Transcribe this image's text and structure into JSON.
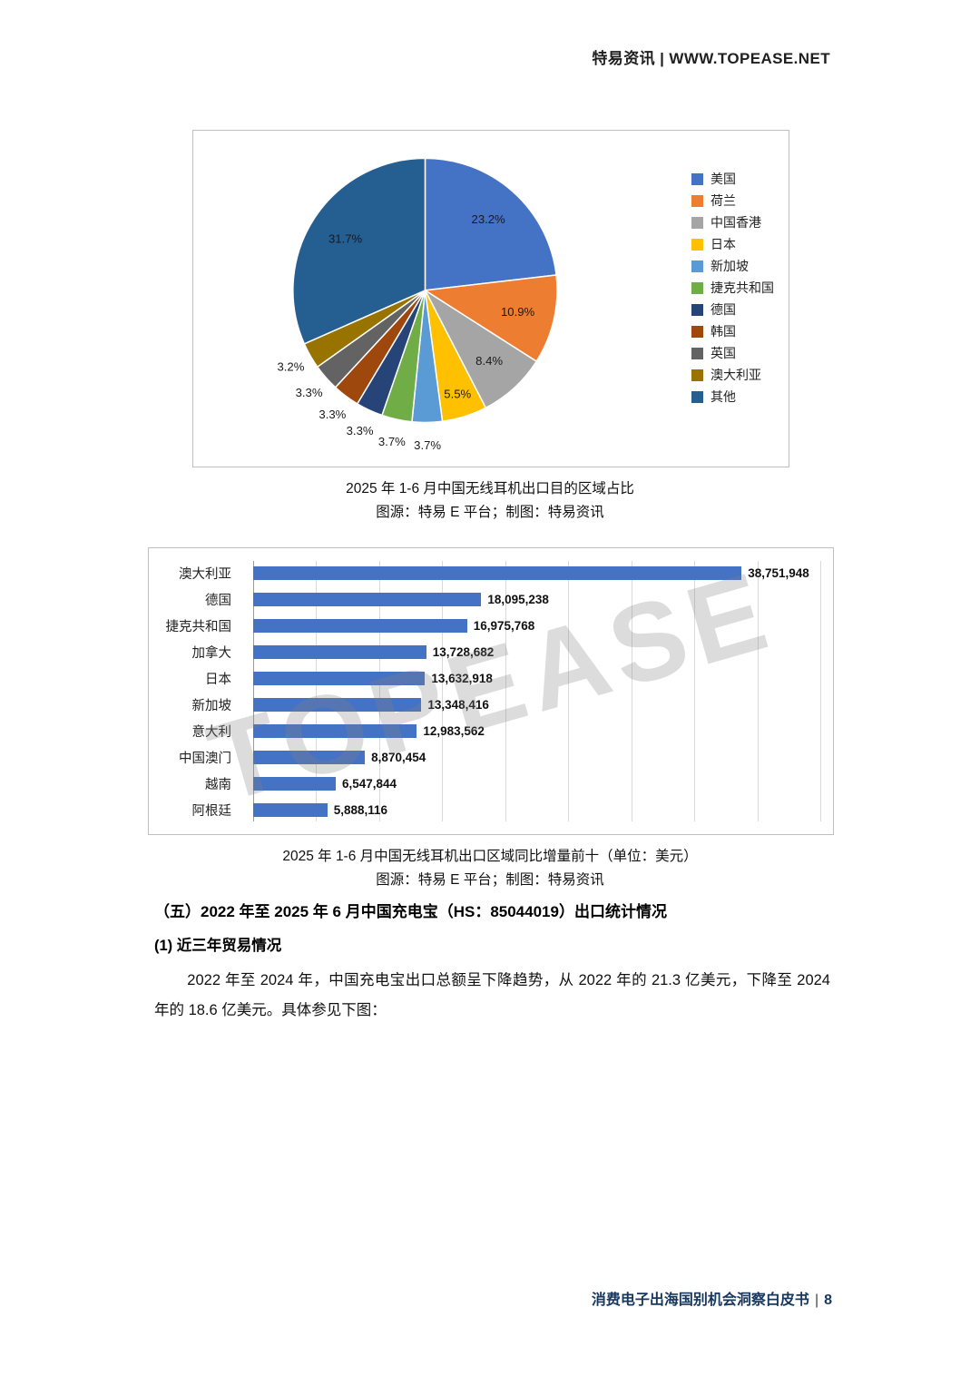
{
  "header": {
    "text": "特易资讯 | WWW.TOPEASE.NET"
  },
  "watermark": "TOPEASE",
  "pie_section": {
    "caption_line1": "2025 年 1-6 月中国无线耳机出口目的区域占比",
    "caption_line2": "图源：特易 E 平台；制图：特易资讯"
  },
  "bar_section": {
    "caption_line1": "2025 年 1-6 月中国无线耳机出口区域同比增量前十（单位：美元）",
    "caption_line2": "图源：特易 E 平台；制图：特易资讯"
  },
  "body": {
    "heading_section": "（五）2022 年至 2025 年 6 月中国充电宝（HS：85044019）出口统计情况",
    "heading_sub": "(1) 近三年贸易情况",
    "paragraph": "2022 年至 2024 年，中国充电宝出口总额呈下降趋势，从 2022 年的 21.3 亿美元，下降至 2024 年的 18.6 亿美元。具体参见下图："
  },
  "footer": {
    "title": "消费电子出海国别机会洞察白皮书",
    "divider": "|",
    "page": "8"
  },
  "chart_data": [
    {
      "type": "pie",
      "title": "2025 年 1-6 月中国无线耳机出口目的区域占比",
      "labels": [
        "美国",
        "荷兰",
        "中国香港",
        "日本",
        "新加坡",
        "捷克共和国",
        "德国",
        "韩国",
        "英国",
        "澳大利亚",
        "其他"
      ],
      "values": [
        23.2,
        10.9,
        8.4,
        5.5,
        3.7,
        3.7,
        3.3,
        3.3,
        3.3,
        3.2,
        31.7
      ],
      "colors": [
        "#4472C4",
        "#ED7D31",
        "#A5A5A5",
        "#FFC000",
        "#5B9BD5",
        "#70AD47",
        "#264478",
        "#9E480E",
        "#636363",
        "#997300",
        "#255E91"
      ],
      "legend_position": "right",
      "label_format": "percent"
    },
    {
      "type": "bar",
      "orientation": "horizontal",
      "title": "2025 年 1-6 月中国无线耳机出口区域同比增量前十（单位：美元）",
      "categories": [
        "澳大利亚",
        "德国",
        "捷克共和国",
        "加拿大",
        "日本",
        "新加坡",
        "意大利",
        "中国澳门",
        "越南",
        "阿根廷"
      ],
      "values": [
        38751948,
        18095238,
        16975768,
        13728682,
        13632918,
        13348416,
        12983562,
        8870454,
        6547844,
        5888116
      ],
      "value_labels": [
        "38,751,948",
        "18,095,238",
        "16,975,768",
        "13,728,682",
        "13,632,918",
        "13,348,416",
        "12,983,562",
        "8,870,454",
        "6,547,844",
        "5,888,116"
      ],
      "bar_color": "#4472C4",
      "xlim": [
        0,
        45000000
      ],
      "grid_interval": 5000000,
      "grid": true,
      "legend_position": "none"
    }
  ]
}
